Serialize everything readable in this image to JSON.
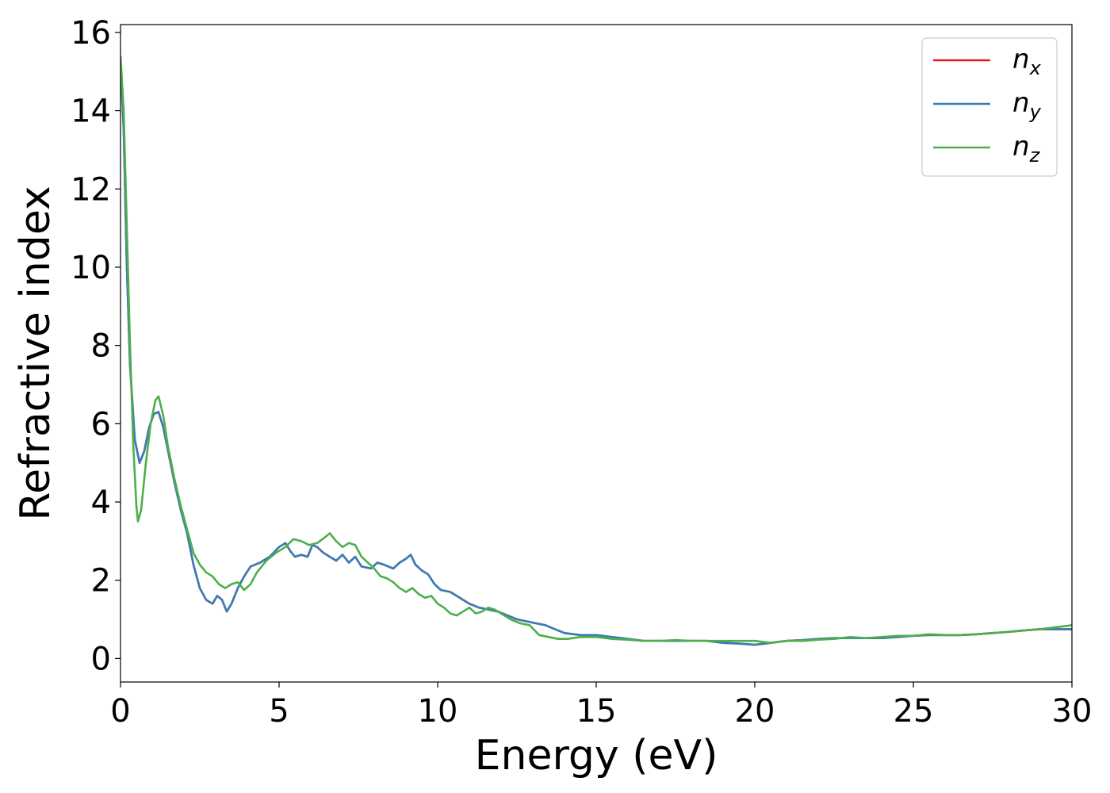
{
  "chart_data": {
    "type": "line",
    "xlabel": "Energy (eV)",
    "ylabel": "Refractive index",
    "xlim": [
      0,
      30
    ],
    "ylim": [
      -0.6,
      16.2
    ],
    "xticks": [
      0,
      5,
      10,
      15,
      20,
      25,
      30
    ],
    "yticks": [
      0,
      2,
      4,
      6,
      8,
      10,
      12,
      14,
      16
    ],
    "grid": false,
    "legend_position": "top-right",
    "series": [
      {
        "name": "n_x",
        "base": "n",
        "sub": "x",
        "color": "#e41a1c",
        "points": [
          [
            0,
            15.3
          ],
          [
            0.1,
            13.5
          ],
          [
            0.2,
            10.0
          ],
          [
            0.3,
            7.5
          ],
          [
            0.45,
            5.6
          ],
          [
            0.6,
            5.0
          ],
          [
            0.75,
            5.3
          ],
          [
            0.9,
            5.9
          ],
          [
            1.05,
            6.25
          ],
          [
            1.2,
            6.3
          ],
          [
            1.35,
            5.9
          ],
          [
            1.5,
            5.3
          ],
          [
            1.7,
            4.5
          ],
          [
            1.9,
            3.8
          ],
          [
            2.1,
            3.2
          ],
          [
            2.3,
            2.4
          ],
          [
            2.5,
            1.8
          ],
          [
            2.7,
            1.5
          ],
          [
            2.9,
            1.4
          ],
          [
            3.05,
            1.6
          ],
          [
            3.2,
            1.5
          ],
          [
            3.35,
            1.2
          ],
          [
            3.5,
            1.4
          ],
          [
            3.7,
            1.8
          ],
          [
            3.9,
            2.1
          ],
          [
            4.1,
            2.35
          ],
          [
            4.4,
            2.45
          ],
          [
            4.7,
            2.6
          ],
          [
            5.0,
            2.85
          ],
          [
            5.2,
            2.95
          ],
          [
            5.35,
            2.75
          ],
          [
            5.5,
            2.6
          ],
          [
            5.7,
            2.65
          ],
          [
            5.9,
            2.6
          ],
          [
            6.05,
            2.9
          ],
          [
            6.2,
            2.85
          ],
          [
            6.4,
            2.7
          ],
          [
            6.6,
            2.6
          ],
          [
            6.8,
            2.5
          ],
          [
            7.0,
            2.65
          ],
          [
            7.2,
            2.45
          ],
          [
            7.4,
            2.6
          ],
          [
            7.6,
            2.35
          ],
          [
            7.9,
            2.3
          ],
          [
            8.1,
            2.45
          ],
          [
            8.3,
            2.4
          ],
          [
            8.6,
            2.3
          ],
          [
            8.8,
            2.45
          ],
          [
            9.0,
            2.55
          ],
          [
            9.15,
            2.65
          ],
          [
            9.3,
            2.4
          ],
          [
            9.5,
            2.25
          ],
          [
            9.7,
            2.15
          ],
          [
            9.9,
            1.9
          ],
          [
            10.1,
            1.75
          ],
          [
            10.4,
            1.7
          ],
          [
            10.7,
            1.55
          ],
          [
            11.0,
            1.4
          ],
          [
            11.3,
            1.3
          ],
          [
            11.6,
            1.25
          ],
          [
            11.9,
            1.2
          ],
          [
            12.2,
            1.1
          ],
          [
            12.5,
            1.0
          ],
          [
            12.8,
            0.95
          ],
          [
            13.1,
            0.9
          ],
          [
            13.4,
            0.85
          ],
          [
            13.7,
            0.75
          ],
          [
            14.0,
            0.65
          ],
          [
            14.5,
            0.6
          ],
          [
            15.0,
            0.6
          ],
          [
            15.5,
            0.55
          ],
          [
            16.0,
            0.5
          ],
          [
            16.5,
            0.45
          ],
          [
            17.0,
            0.45
          ],
          [
            17.5,
            0.45
          ],
          [
            18.0,
            0.45
          ],
          [
            18.5,
            0.45
          ],
          [
            19.0,
            0.4
          ],
          [
            19.5,
            0.38
          ],
          [
            20.0,
            0.35
          ],
          [
            20.5,
            0.4
          ],
          [
            21.0,
            0.45
          ],
          [
            21.5,
            0.47
          ],
          [
            22.0,
            0.5
          ],
          [
            22.5,
            0.52
          ],
          [
            23.0,
            0.52
          ],
          [
            23.5,
            0.52
          ],
          [
            24.0,
            0.52
          ],
          [
            24.5,
            0.55
          ],
          [
            25.0,
            0.58
          ],
          [
            25.5,
            0.6
          ],
          [
            26.0,
            0.6
          ],
          [
            26.5,
            0.6
          ],
          [
            27.0,
            0.62
          ],
          [
            27.5,
            0.65
          ],
          [
            28.0,
            0.68
          ],
          [
            28.5,
            0.72
          ],
          [
            29.0,
            0.75
          ],
          [
            29.5,
            0.75
          ],
          [
            30.0,
            0.75
          ]
        ]
      },
      {
        "name": "n_y",
        "base": "n",
        "sub": "y",
        "color": "#377eb8",
        "points": [
          [
            0,
            15.3
          ],
          [
            0.1,
            13.5
          ],
          [
            0.2,
            10.0
          ],
          [
            0.3,
            7.5
          ],
          [
            0.45,
            5.6
          ],
          [
            0.6,
            5.0
          ],
          [
            0.75,
            5.3
          ],
          [
            0.9,
            5.9
          ],
          [
            1.05,
            6.25
          ],
          [
            1.2,
            6.3
          ],
          [
            1.35,
            5.9
          ],
          [
            1.5,
            5.3
          ],
          [
            1.7,
            4.5
          ],
          [
            1.9,
            3.8
          ],
          [
            2.1,
            3.2
          ],
          [
            2.3,
            2.4
          ],
          [
            2.5,
            1.8
          ],
          [
            2.7,
            1.5
          ],
          [
            2.9,
            1.4
          ],
          [
            3.05,
            1.6
          ],
          [
            3.2,
            1.5
          ],
          [
            3.35,
            1.2
          ],
          [
            3.5,
            1.4
          ],
          [
            3.7,
            1.8
          ],
          [
            3.9,
            2.1
          ],
          [
            4.1,
            2.35
          ],
          [
            4.4,
            2.45
          ],
          [
            4.7,
            2.6
          ],
          [
            5.0,
            2.85
          ],
          [
            5.2,
            2.95
          ],
          [
            5.35,
            2.75
          ],
          [
            5.5,
            2.6
          ],
          [
            5.7,
            2.65
          ],
          [
            5.9,
            2.6
          ],
          [
            6.05,
            2.9
          ],
          [
            6.2,
            2.85
          ],
          [
            6.4,
            2.7
          ],
          [
            6.6,
            2.6
          ],
          [
            6.8,
            2.5
          ],
          [
            7.0,
            2.65
          ],
          [
            7.2,
            2.45
          ],
          [
            7.4,
            2.6
          ],
          [
            7.6,
            2.35
          ],
          [
            7.9,
            2.3
          ],
          [
            8.1,
            2.45
          ],
          [
            8.3,
            2.4
          ],
          [
            8.6,
            2.3
          ],
          [
            8.8,
            2.45
          ],
          [
            9.0,
            2.55
          ],
          [
            9.15,
            2.65
          ],
          [
            9.3,
            2.4
          ],
          [
            9.5,
            2.25
          ],
          [
            9.7,
            2.15
          ],
          [
            9.9,
            1.9
          ],
          [
            10.1,
            1.75
          ],
          [
            10.4,
            1.7
          ],
          [
            10.7,
            1.55
          ],
          [
            11.0,
            1.4
          ],
          [
            11.3,
            1.3
          ],
          [
            11.6,
            1.25
          ],
          [
            11.9,
            1.2
          ],
          [
            12.2,
            1.1
          ],
          [
            12.5,
            1.0
          ],
          [
            12.8,
            0.95
          ],
          [
            13.1,
            0.9
          ],
          [
            13.4,
            0.85
          ],
          [
            13.7,
            0.75
          ],
          [
            14.0,
            0.65
          ],
          [
            14.5,
            0.6
          ],
          [
            15.0,
            0.6
          ],
          [
            15.5,
            0.55
          ],
          [
            16.0,
            0.5
          ],
          [
            16.5,
            0.45
          ],
          [
            17.0,
            0.45
          ],
          [
            17.5,
            0.45
          ],
          [
            18.0,
            0.45
          ],
          [
            18.5,
            0.45
          ],
          [
            19.0,
            0.4
          ],
          [
            19.5,
            0.38
          ],
          [
            20.0,
            0.35
          ],
          [
            20.5,
            0.4
          ],
          [
            21.0,
            0.45
          ],
          [
            21.5,
            0.47
          ],
          [
            22.0,
            0.5
          ],
          [
            22.5,
            0.52
          ],
          [
            23.0,
            0.52
          ],
          [
            23.5,
            0.52
          ],
          [
            24.0,
            0.52
          ],
          [
            24.5,
            0.55
          ],
          [
            25.0,
            0.58
          ],
          [
            25.5,
            0.6
          ],
          [
            26.0,
            0.6
          ],
          [
            26.5,
            0.6
          ],
          [
            27.0,
            0.62
          ],
          [
            27.5,
            0.65
          ],
          [
            28.0,
            0.68
          ],
          [
            28.5,
            0.72
          ],
          [
            29.0,
            0.75
          ],
          [
            29.5,
            0.75
          ],
          [
            30.0,
            0.75
          ]
        ]
      },
      {
        "name": "n_z",
        "base": "n",
        "sub": "z",
        "color": "#4daf4a",
        "points": [
          [
            0,
            15.4
          ],
          [
            0.1,
            14.0
          ],
          [
            0.2,
            11.0
          ],
          [
            0.3,
            8.0
          ],
          [
            0.4,
            5.5
          ],
          [
            0.5,
            3.9
          ],
          [
            0.55,
            3.5
          ],
          [
            0.65,
            3.8
          ],
          [
            0.8,
            5.0
          ],
          [
            0.95,
            6.0
          ],
          [
            1.1,
            6.6
          ],
          [
            1.2,
            6.7
          ],
          [
            1.35,
            6.2
          ],
          [
            1.5,
            5.4
          ],
          [
            1.7,
            4.6
          ],
          [
            1.9,
            3.9
          ],
          [
            2.1,
            3.3
          ],
          [
            2.3,
            2.7
          ],
          [
            2.5,
            2.4
          ],
          [
            2.7,
            2.2
          ],
          [
            2.9,
            2.1
          ],
          [
            3.1,
            1.9
          ],
          [
            3.3,
            1.8
          ],
          [
            3.5,
            1.9
          ],
          [
            3.7,
            1.95
          ],
          [
            3.9,
            1.75
          ],
          [
            4.1,
            1.9
          ],
          [
            4.3,
            2.2
          ],
          [
            4.6,
            2.5
          ],
          [
            4.9,
            2.7
          ],
          [
            5.2,
            2.85
          ],
          [
            5.45,
            3.05
          ],
          [
            5.7,
            3.0
          ],
          [
            5.95,
            2.9
          ],
          [
            6.2,
            2.95
          ],
          [
            6.45,
            3.1
          ],
          [
            6.6,
            3.2
          ],
          [
            6.8,
            3.0
          ],
          [
            7.0,
            2.85
          ],
          [
            7.2,
            2.95
          ],
          [
            7.4,
            2.9
          ],
          [
            7.6,
            2.6
          ],
          [
            7.8,
            2.45
          ],
          [
            8.0,
            2.3
          ],
          [
            8.2,
            2.1
          ],
          [
            8.4,
            2.05
          ],
          [
            8.6,
            1.95
          ],
          [
            8.8,
            1.8
          ],
          [
            9.0,
            1.7
          ],
          [
            9.2,
            1.8
          ],
          [
            9.4,
            1.65
          ],
          [
            9.6,
            1.55
          ],
          [
            9.8,
            1.6
          ],
          [
            10.0,
            1.4
          ],
          [
            10.2,
            1.3
          ],
          [
            10.4,
            1.15
          ],
          [
            10.6,
            1.1
          ],
          [
            10.8,
            1.2
          ],
          [
            11.0,
            1.3
          ],
          [
            11.2,
            1.15
          ],
          [
            11.4,
            1.2
          ],
          [
            11.6,
            1.3
          ],
          [
            11.8,
            1.25
          ],
          [
            12.0,
            1.15
          ],
          [
            12.3,
            1.0
          ],
          [
            12.6,
            0.9
          ],
          [
            12.9,
            0.85
          ],
          [
            13.2,
            0.6
          ],
          [
            13.5,
            0.55
          ],
          [
            13.8,
            0.5
          ],
          [
            14.1,
            0.5
          ],
          [
            14.5,
            0.55
          ],
          [
            15.0,
            0.55
          ],
          [
            15.5,
            0.5
          ],
          [
            16.0,
            0.48
          ],
          [
            16.5,
            0.45
          ],
          [
            17.0,
            0.45
          ],
          [
            17.5,
            0.47
          ],
          [
            18.0,
            0.45
          ],
          [
            18.5,
            0.45
          ],
          [
            19.0,
            0.45
          ],
          [
            19.5,
            0.45
          ],
          [
            20.0,
            0.45
          ],
          [
            20.5,
            0.4
          ],
          [
            21.0,
            0.45
          ],
          [
            21.5,
            0.45
          ],
          [
            22.0,
            0.48
          ],
          [
            22.5,
            0.5
          ],
          [
            23.0,
            0.55
          ],
          [
            23.5,
            0.52
          ],
          [
            24.0,
            0.55
          ],
          [
            24.5,
            0.58
          ],
          [
            25.0,
            0.58
          ],
          [
            25.5,
            0.62
          ],
          [
            26.0,
            0.6
          ],
          [
            26.5,
            0.6
          ],
          [
            27.0,
            0.62
          ],
          [
            27.5,
            0.65
          ],
          [
            28.0,
            0.68
          ],
          [
            28.5,
            0.72
          ],
          [
            29.0,
            0.75
          ],
          [
            29.5,
            0.8
          ],
          [
            30.0,
            0.85
          ]
        ]
      }
    ]
  }
}
